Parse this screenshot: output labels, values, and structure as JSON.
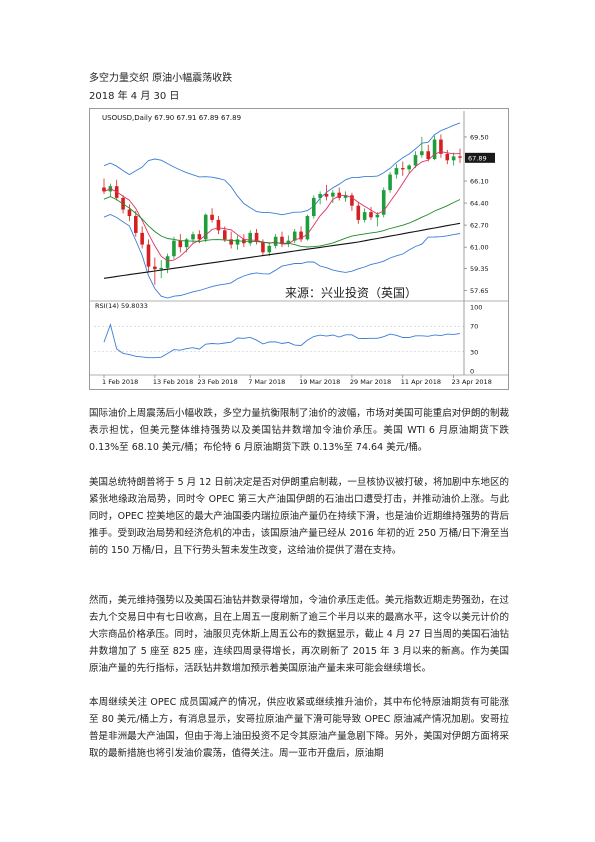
{
  "document": {
    "title": "多空力量交织 原油小幅震荡收跌",
    "date": "2018 年 4 月 30 日",
    "paragraphs": [
      "国际油价上周震荡后小幅收跌，多空力量抗衡限制了油价的波幅，市场对美国可能重启对伊朗的制裁表示担忧，但美元整体维持强势以及美国钻井数增加令油价承压。美国 WTI 6 月原油期货下跌 0.13%至 68.10 美元/桶；布伦特 6 月原油期货下跌 0.13%至 74.64 美元/桶。",
      "美国总统特朗普将于 5 月 12 日前决定是否对伊朗重启制裁，一旦核协议被打破，将加剧中东地区的紧张地缘政治局势，同时令 OPEC 第三大产油国伊朗的石油出口遭受打击，并推动油价上涨。与此同时，OPEC 控美地区的最大产油国委内瑞拉原油产量仍在持续下滑，也是油价近期维持强势的背后推手。受到政治局势和经济危机的冲击，该国原油产量已经从 2016 年初的近 250 万桶/日下滑至当前的 150 万桶/日，且下行势头暂未发生改变，这给油价提供了潜在支持。",
      "然而，美元维持强势以及美国石油钻井数录得增加，令油价承压走低。美元指数近期走势强劲，在过去九个交易日中有七日收高，且在上周五一度刷新了逾三个半月以来的最高水平，这令以美元计价的大宗商品价格承压。同时，油服贝克休斯上周五公布的数据显示，截止 4 月 27 日当周的美国石油钻井数增加了 5 座至 825 座，连续四周录得增长，再次刷新了 2015 年 3 月以来的新高。作为美国原油产量的先行指标，活跃钻井数增加预示着美国原油产量未来可能会继续增长。",
      "本周继续关注 OPEC 成员国减产的情况，供应收紧或继续推升油价，其中布伦特原油期货有可能涨至 80 美元/桶上方，有消息显示，安哥拉原油产量下滑可能导致 OPEC 原油减产情况加剧。安哥拉普是非洲最大产油国，但由于海上油田投资不足令其原油产量急剧下降。另外，美国对伊朗方面将采取的最新措施也将引发油价震荡，值得关注。周一亚市开盘后，原油期"
    ]
  },
  "chart": {
    "header": "USOUSD,Daily  67.90 67.91 67.89 67.89",
    "watermark": "来源：兴业投资（英国）",
    "rsi_label": "RSI(14)  59.8033",
    "last_price": "67.89",
    "colors": {
      "bull": "#1e9e3a",
      "bear": "#d42020",
      "upper_band": "#3b7dd8",
      "ma_red": "#e03060",
      "ma_green": "#1e8a2a",
      "ma_black": "#111111",
      "rsi": "#3b7dd8",
      "price_tag": "#1a1a1a"
    }
  },
  "chart_data": {
    "type": "candlestick",
    "title": "USOUSD,Daily",
    "x_ticks": [
      "1 Feb 2018",
      "13 Feb 2018",
      "23 Feb 2018",
      "7 Mar 2018",
      "19 Mar 2018",
      "29 Mar 2018",
      "11 Apr 2018",
      "23 Apr 2018"
    ],
    "price_ticks": [
      "69.50",
      "66.10",
      "64.40",
      "62.70",
      "61.00",
      "59.35",
      "57.65"
    ],
    "rsi_ticks": [
      "100",
      "70",
      "30",
      "0"
    ],
    "rsi_last": 59.8033,
    "ohlc": [
      [
        65.6,
        66.3,
        65.1,
        65.3
      ],
      [
        65.3,
        65.9,
        64.9,
        65.7
      ],
      [
        65.7,
        66.2,
        64.6,
        64.8
      ],
      [
        64.8,
        65.0,
        63.6,
        63.9
      ],
      [
        63.9,
        64.3,
        63.0,
        63.4
      ],
      [
        63.4,
        63.8,
        61.8,
        62.1
      ],
      [
        62.1,
        62.6,
        60.9,
        61.2
      ],
      [
        61.2,
        61.6,
        59.1,
        59.5
      ],
      [
        59.5,
        60.2,
        58.1,
        59.3
      ],
      [
        59.3,
        60.0,
        58.6,
        59.4
      ],
      [
        59.4,
        60.5,
        59.0,
        60.3
      ],
      [
        60.3,
        61.8,
        60.1,
        61.5
      ],
      [
        61.5,
        62.0,
        60.6,
        61.0
      ],
      [
        61.0,
        61.7,
        60.6,
        61.6
      ],
      [
        61.6,
        62.2,
        61.3,
        62.0
      ],
      [
        62.0,
        62.3,
        61.3,
        61.6
      ],
      [
        61.6,
        63.6,
        61.4,
        63.5
      ],
      [
        63.5,
        64.0,
        62.9,
        63.1
      ],
      [
        63.1,
        63.4,
        62.0,
        62.3
      ],
      [
        62.3,
        62.6,
        61.4,
        61.6
      ],
      [
        61.6,
        62.2,
        60.9,
        61.2
      ],
      [
        61.2,
        61.9,
        60.8,
        61.6
      ],
      [
        61.6,
        62.0,
        61.0,
        61.3
      ],
      [
        61.3,
        62.3,
        61.1,
        62.1
      ],
      [
        62.1,
        62.4,
        61.2,
        61.4
      ],
      [
        61.4,
        61.6,
        60.4,
        60.6
      ],
      [
        60.6,
        61.3,
        60.3,
        61.1
      ],
      [
        61.1,
        62.0,
        60.9,
        61.8
      ],
      [
        61.8,
        62.2,
        61.0,
        61.3
      ],
      [
        61.3,
        61.9,
        61.0,
        61.5
      ],
      [
        61.5,
        62.4,
        61.3,
        62.2
      ],
      [
        62.2,
        62.6,
        61.4,
        61.6
      ],
      [
        61.6,
        63.5,
        61.5,
        63.4
      ],
      [
        63.4,
        65.0,
        63.2,
        64.8
      ],
      [
        64.8,
        65.3,
        64.3,
        65.1
      ],
      [
        65.1,
        65.8,
        64.6,
        64.9
      ],
      [
        64.9,
        65.4,
        64.4,
        65.2
      ],
      [
        65.2,
        65.6,
        64.6,
        64.8
      ],
      [
        64.8,
        65.3,
        64.5,
        65.0
      ],
      [
        65.0,
        65.2,
        63.8,
        64.2
      ],
      [
        64.2,
        64.5,
        62.8,
        63.1
      ],
      [
        63.1,
        64.0,
        62.9,
        63.7
      ],
      [
        63.7,
        64.1,
        63.1,
        63.3
      ],
      [
        63.3,
        63.7,
        62.6,
        63.5
      ],
      [
        63.5,
        65.6,
        63.3,
        65.4
      ],
      [
        65.4,
        66.8,
        65.2,
        66.6
      ],
      [
        66.6,
        67.4,
        66.3,
        67.1
      ],
      [
        67.1,
        67.6,
        66.5,
        67.0
      ],
      [
        67.0,
        67.4,
        66.7,
        67.3
      ],
      [
        67.3,
        68.4,
        67.1,
        68.1
      ],
      [
        68.1,
        69.5,
        67.9,
        68.4
      ],
      [
        68.4,
        68.9,
        67.6,
        67.8
      ],
      [
        67.8,
        69.6,
        67.7,
        69.3
      ],
      [
        69.3,
        69.7,
        67.9,
        68.2
      ],
      [
        68.2,
        68.5,
        67.4,
        67.7
      ],
      [
        67.7,
        68.3,
        67.3,
        68.0
      ],
      [
        68.0,
        68.6,
        67.5,
        67.9
      ]
    ]
  }
}
